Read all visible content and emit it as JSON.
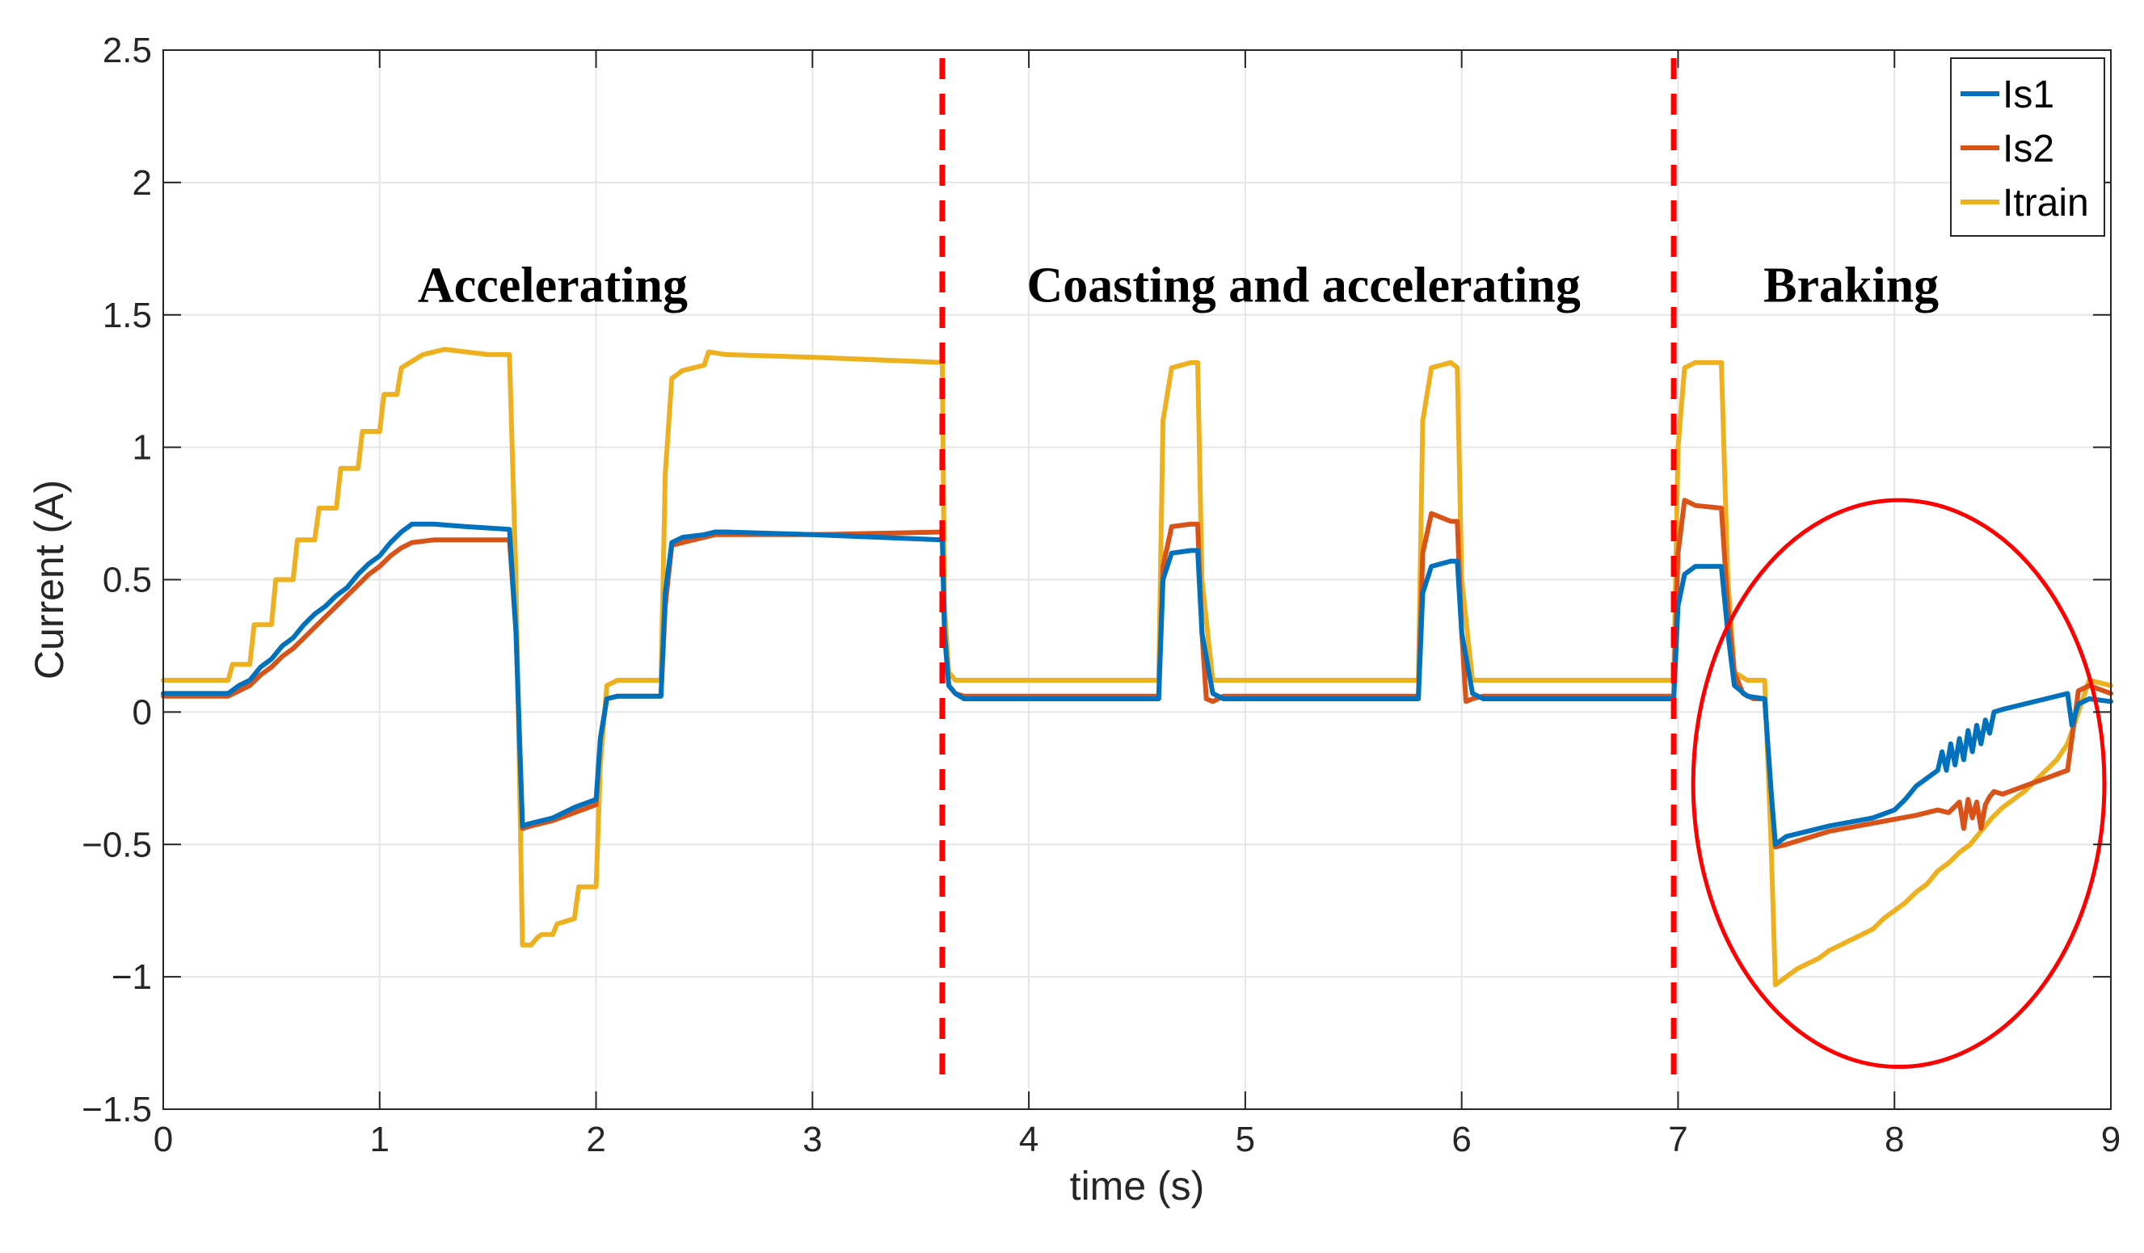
{
  "chart_data": {
    "type": "line",
    "title": "",
    "xlabel": "time (s)",
    "ylabel": "Current (A)",
    "xlim": [
      0,
      9
    ],
    "ylim": [
      -1.5,
      2.5
    ],
    "xticks": [
      0,
      1,
      2,
      3,
      4,
      5,
      6,
      7,
      8,
      9
    ],
    "yticks": [
      -1.5,
      -1,
      -0.5,
      0,
      0.5,
      1,
      1.5,
      2,
      2.5
    ],
    "xtick_labels": [
      "0",
      "1",
      "2",
      "3",
      "4",
      "5",
      "6",
      "7",
      "8",
      "9"
    ],
    "ytick_labels": [
      "−1.5",
      "−1",
      "−0.5",
      "0",
      "0.5",
      "1",
      "1.5",
      "2",
      "2.5"
    ],
    "grid": true,
    "legend_position": "top-right",
    "phase_dividers": [
      3.6,
      6.98
    ],
    "phase_labels": [
      {
        "text": "Accelerating",
        "x": 1.8,
        "y": 1.55
      },
      {
        "text": "Coasting and accelerating",
        "x": 5.27,
        "y": 1.55
      },
      {
        "text": "Braking",
        "x": 7.8,
        "y": 1.55
      }
    ],
    "highlight_ellipse": {
      "cx": 8.02,
      "cy": -0.27,
      "rx": 0.95,
      "ry": 1.07,
      "color": "#ff0000"
    },
    "series": [
      {
        "name": "Is1",
        "color": "#0072BD",
        "x": [
          0,
          0.3,
          0.35,
          0.4,
          0.45,
          0.5,
          0.55,
          0.6,
          0.65,
          0.7,
          0.75,
          0.8,
          0.85,
          0.9,
          0.95,
          1.0,
          1.05,
          1.1,
          1.15,
          1.25,
          1.4,
          1.6,
          1.63,
          1.66,
          1.7,
          1.8,
          1.9,
          2.0,
          2.02,
          2.05,
          2.1,
          2.3,
          2.32,
          2.35,
          2.4,
          2.5,
          2.55,
          2.6,
          3.0,
          3.6,
          3.61,
          3.63,
          3.66,
          3.7,
          4.6,
          4.62,
          4.66,
          4.75,
          4.78,
          4.8,
          4.85,
          4.9,
          5.8,
          5.82,
          5.86,
          5.95,
          5.98,
          6.0,
          6.05,
          6.1,
          6.98,
          7.0,
          7.03,
          7.08,
          7.2,
          7.23,
          7.26,
          7.32,
          7.4,
          7.43,
          7.45,
          7.5,
          7.7,
          7.9,
          8.0,
          8.05,
          8.1,
          8.15,
          8.2,
          8.22,
          8.24,
          8.26,
          8.28,
          8.3,
          8.32,
          8.34,
          8.36,
          8.38,
          8.4,
          8.42,
          8.44,
          8.46,
          8.5,
          8.6,
          8.8,
          8.82,
          8.85,
          8.9,
          9.0
        ],
        "y": [
          0.07,
          0.07,
          0.1,
          0.12,
          0.17,
          0.2,
          0.25,
          0.28,
          0.33,
          0.37,
          0.4,
          0.44,
          0.47,
          0.52,
          0.56,
          0.59,
          0.64,
          0.68,
          0.71,
          0.71,
          0.7,
          0.69,
          0.3,
          -0.43,
          -0.42,
          -0.4,
          -0.36,
          -0.33,
          -0.1,
          0.05,
          0.06,
          0.06,
          0.45,
          0.64,
          0.66,
          0.67,
          0.68,
          0.68,
          0.67,
          0.65,
          0.3,
          0.1,
          0.07,
          0.05,
          0.05,
          0.5,
          0.6,
          0.61,
          0.61,
          0.3,
          0.07,
          0.05,
          0.05,
          0.45,
          0.55,
          0.57,
          0.57,
          0.3,
          0.07,
          0.05,
          0.05,
          0.4,
          0.52,
          0.55,
          0.55,
          0.3,
          0.1,
          0.06,
          0.05,
          -0.3,
          -0.5,
          -0.47,
          -0.43,
          -0.4,
          -0.37,
          -0.33,
          -0.28,
          -0.25,
          -0.22,
          -0.15,
          -0.22,
          -0.12,
          -0.2,
          -0.1,
          -0.18,
          -0.07,
          -0.15,
          -0.05,
          -0.12,
          -0.03,
          -0.08,
          0.0,
          0.01,
          0.03,
          0.07,
          -0.05,
          0.03,
          0.05,
          0.04
        ]
      },
      {
        "name": "Is2",
        "color": "#D95319",
        "x": [
          0,
          0.3,
          0.35,
          0.4,
          0.45,
          0.5,
          0.55,
          0.6,
          0.65,
          0.7,
          0.75,
          0.8,
          0.85,
          0.9,
          0.95,
          1.0,
          1.05,
          1.1,
          1.15,
          1.25,
          1.4,
          1.6,
          1.63,
          1.66,
          1.7,
          1.8,
          1.9,
          2.0,
          2.02,
          2.05,
          2.1,
          2.3,
          2.32,
          2.35,
          2.4,
          2.5,
          2.55,
          2.6,
          3.0,
          3.6,
          3.61,
          3.63,
          3.66,
          3.7,
          4.6,
          4.62,
          4.66,
          4.75,
          4.78,
          4.8,
          4.82,
          4.85,
          4.9,
          5.8,
          5.82,
          5.86,
          5.95,
          5.98,
          6.0,
          6.02,
          6.05,
          6.1,
          6.98,
          7.0,
          7.03,
          7.08,
          7.2,
          7.23,
          7.26,
          7.3,
          7.35,
          7.4,
          7.43,
          7.45,
          7.5,
          7.7,
          7.9,
          8.1,
          8.2,
          8.25,
          8.3,
          8.32,
          8.34,
          8.36,
          8.38,
          8.4,
          8.42,
          8.44,
          8.46,
          8.5,
          8.6,
          8.7,
          8.8,
          8.85,
          8.9,
          9.0
        ],
        "y": [
          0.06,
          0.06,
          0.08,
          0.1,
          0.14,
          0.17,
          0.21,
          0.24,
          0.28,
          0.32,
          0.36,
          0.4,
          0.44,
          0.48,
          0.52,
          0.55,
          0.59,
          0.62,
          0.64,
          0.65,
          0.65,
          0.65,
          0.3,
          -0.44,
          -0.43,
          -0.41,
          -0.38,
          -0.35,
          -0.1,
          0.05,
          0.06,
          0.06,
          0.4,
          0.63,
          0.64,
          0.66,
          0.67,
          0.67,
          0.67,
          0.68,
          0.3,
          0.1,
          0.07,
          0.06,
          0.06,
          0.55,
          0.7,
          0.71,
          0.71,
          0.3,
          0.05,
          0.04,
          0.06,
          0.06,
          0.6,
          0.75,
          0.72,
          0.72,
          0.3,
          0.04,
          0.05,
          0.06,
          0.06,
          0.6,
          0.8,
          0.78,
          0.77,
          0.4,
          0.15,
          0.07,
          0.05,
          0.05,
          -0.3,
          -0.51,
          -0.5,
          -0.45,
          -0.42,
          -0.39,
          -0.37,
          -0.38,
          -0.34,
          -0.44,
          -0.33,
          -0.4,
          -0.34,
          -0.44,
          -0.35,
          -0.32,
          -0.3,
          -0.31,
          -0.28,
          -0.25,
          -0.22,
          0.08,
          0.1,
          0.07
        ]
      },
      {
        "name": "Itrain",
        "color": "#EDB120",
        "x": [
          0,
          0.3,
          0.32,
          0.4,
          0.42,
          0.5,
          0.52,
          0.6,
          0.62,
          0.7,
          0.72,
          0.8,
          0.82,
          0.9,
          0.92,
          1.0,
          1.02,
          1.08,
          1.1,
          1.2,
          1.3,
          1.4,
          1.5,
          1.6,
          1.63,
          1.66,
          1.7,
          1.73,
          1.75,
          1.8,
          1.82,
          1.9,
          1.92,
          2.0,
          2.02,
          2.05,
          2.1,
          2.3,
          2.32,
          2.35,
          2.4,
          2.45,
          2.5,
          2.52,
          2.6,
          3.0,
          3.6,
          3.61,
          3.63,
          3.66,
          3.7,
          4.6,
          4.62,
          4.66,
          4.75,
          4.78,
          4.8,
          4.85,
          4.9,
          5.8,
          5.82,
          5.86,
          5.95,
          5.98,
          6.0,
          6.05,
          6.1,
          6.98,
          7.0,
          7.03,
          7.08,
          7.2,
          7.23,
          7.26,
          7.32,
          7.4,
          7.43,
          7.45,
          7.5,
          7.55,
          7.6,
          7.65,
          7.7,
          7.75,
          7.8,
          7.85,
          7.9,
          7.95,
          8.0,
          8.05,
          8.1,
          8.15,
          8.2,
          8.25,
          8.3,
          8.35,
          8.4,
          8.45,
          8.5,
          8.55,
          8.6,
          8.65,
          8.7,
          8.75,
          8.8,
          8.85,
          8.9,
          9.0
        ],
        "y": [
          0.12,
          0.12,
          0.18,
          0.18,
          0.33,
          0.33,
          0.5,
          0.5,
          0.65,
          0.65,
          0.77,
          0.77,
          0.92,
          0.92,
          1.06,
          1.06,
          1.2,
          1.2,
          1.3,
          1.35,
          1.37,
          1.36,
          1.35,
          1.35,
          0.5,
          -0.88,
          -0.88,
          -0.85,
          -0.84,
          -0.84,
          -0.8,
          -0.78,
          -0.66,
          -0.66,
          -0.2,
          0.1,
          0.12,
          0.12,
          0.9,
          1.26,
          1.29,
          1.3,
          1.31,
          1.36,
          1.35,
          1.34,
          1.32,
          0.4,
          0.15,
          0.12,
          0.12,
          0.12,
          1.1,
          1.3,
          1.32,
          1.32,
          0.5,
          0.12,
          0.12,
          0.12,
          1.1,
          1.3,
          1.32,
          1.3,
          0.5,
          0.12,
          0.12,
          0.12,
          1.0,
          1.3,
          1.32,
          1.32,
          0.5,
          0.15,
          0.12,
          0.12,
          -0.5,
          -1.03,
          -1.0,
          -0.97,
          -0.95,
          -0.93,
          -0.9,
          -0.88,
          -0.86,
          -0.84,
          -0.82,
          -0.78,
          -0.75,
          -0.72,
          -0.68,
          -0.65,
          -0.6,
          -0.57,
          -0.53,
          -0.5,
          -0.45,
          -0.4,
          -0.36,
          -0.33,
          -0.3,
          -0.26,
          -0.22,
          -0.18,
          -0.12,
          0.0,
          0.12,
          0.1
        ]
      }
    ]
  }
}
